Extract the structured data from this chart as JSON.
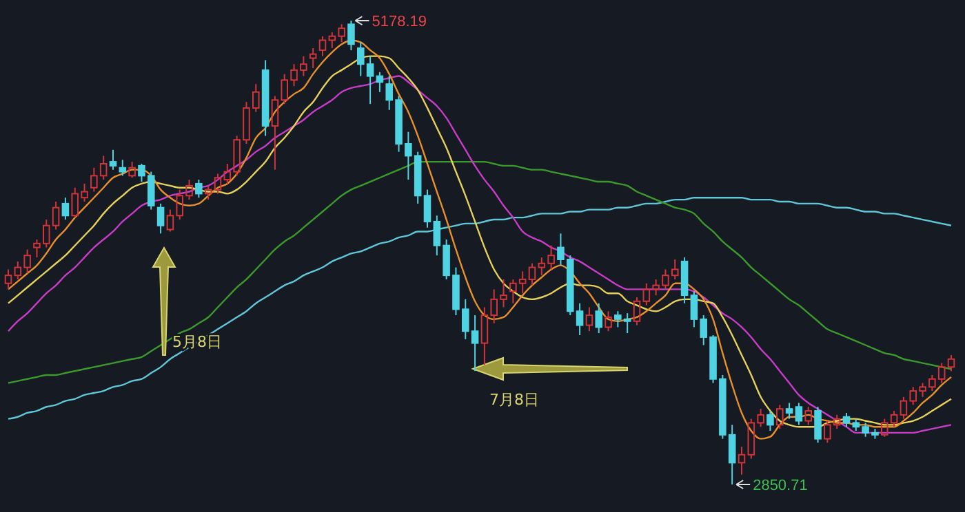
{
  "chart_data": {
    "type": "candlestick",
    "categories": [
      null,
      null,
      null,
      null,
      null,
      null,
      null,
      null,
      null,
      null,
      null,
      null,
      null,
      null,
      null,
      null,
      null,
      null,
      null,
      null,
      null,
      null,
      null,
      null,
      null,
      null,
      null,
      null,
      null,
      null,
      null,
      null,
      null,
      null,
      null,
      null,
      null,
      null,
      null,
      null,
      null,
      null,
      null,
      null,
      null,
      null,
      null,
      null,
      null,
      null,
      null,
      null,
      null,
      null,
      null,
      null,
      null,
      null,
      null,
      null,
      null,
      null,
      null,
      null,
      null,
      null,
      null,
      null,
      null,
      null,
      null,
      null,
      null,
      null,
      null,
      null,
      null,
      null,
      null,
      null,
      null,
      null,
      null,
      null,
      null,
      null,
      null,
      null,
      null,
      null,
      null,
      null,
      null,
      null,
      null,
      null,
      null,
      null,
      null,
      null
    ],
    "ohlc": [
      [
        3860,
        3930,
        3830,
        3900
      ],
      [
        3900,
        3970,
        3880,
        3940
      ],
      [
        3940,
        4030,
        3910,
        4000
      ],
      [
        4040,
        4080,
        3990,
        4060
      ],
      [
        4060,
        4180,
        4040,
        4150
      ],
      [
        4150,
        4270,
        4130,
        4240
      ],
      [
        4260,
        4290,
        4180,
        4200
      ],
      [
        4200,
        4340,
        4190,
        4310
      ],
      [
        4290,
        4360,
        4270,
        4320
      ],
      [
        4340,
        4440,
        4320,
        4400
      ],
      [
        4400,
        4500,
        4380,
        4460
      ],
      [
        4470,
        4530,
        4430,
        4450
      ],
      [
        4440,
        4480,
        4400,
        4420
      ],
      [
        4400,
        4470,
        4390,
        4440
      ],
      [
        4450,
        4460,
        4370,
        4400
      ],
      [
        4400,
        4420,
        4230,
        4250
      ],
      [
        4240,
        4260,
        4110,
        4150
      ],
      [
        4130,
        4230,
        4120,
        4200
      ],
      [
        4200,
        4330,
        4180,
        4300
      ],
      [
        4300,
        4380,
        4280,
        4350
      ],
      [
        4360,
        4380,
        4290,
        4310
      ],
      [
        4310,
        4350,
        4280,
        4330
      ],
      [
        4330,
        4410,
        4310,
        4390
      ],
      [
        4380,
        4460,
        4360,
        4420
      ],
      [
        4420,
        4600,
        4400,
        4580
      ],
      [
        4580,
        4770,
        4560,
        4740
      ],
      [
        4740,
        4860,
        4720,
        4820
      ],
      [
        4930,
        4980,
        4600,
        4650
      ],
      [
        4650,
        4800,
        4430,
        4780
      ],
      [
        4780,
        4910,
        4760,
        4880
      ],
      [
        4880,
        4960,
        4850,
        4930
      ],
      [
        4930,
        5000,
        4900,
        4960
      ],
      [
        4990,
        5040,
        4940,
        5010
      ],
      [
        5030,
        5100,
        5000,
        5080
      ],
      [
        5080,
        5120,
        5040,
        5100
      ],
      [
        5100,
        5160,
        5070,
        5140
      ],
      [
        5160,
        5178.19,
        5030,
        5060
      ],
      [
        5040,
        5070,
        4900,
        4960
      ],
      [
        4960,
        5000,
        4760,
        4900
      ],
      [
        4900,
        4920,
        4820,
        4870
      ],
      [
        4860,
        4900,
        4730,
        4780
      ],
      [
        4780,
        4800,
        4520,
        4560
      ],
      [
        4560,
        4620,
        4380,
        4500
      ],
      [
        4500,
        4520,
        4260,
        4300
      ],
      [
        4300,
        4330,
        4140,
        4170
      ],
      [
        4170,
        4200,
        4000,
        4050
      ],
      [
        4050,
        4080,
        3880,
        3900
      ],
      [
        3900,
        3940,
        3700,
        3730
      ],
      [
        3730,
        3780,
        3580,
        3620
      ],
      [
        3620,
        3700,
        3420,
        3560
      ],
      [
        3560,
        3740,
        3450,
        3700
      ],
      [
        3700,
        3830,
        3660,
        3780
      ],
      [
        3780,
        3880,
        3740,
        3800
      ],
      [
        3820,
        3880,
        3760,
        3860
      ],
      [
        3860,
        3920,
        3810,
        3880
      ],
      [
        3880,
        3960,
        3850,
        3940
      ],
      [
        3940,
        3990,
        3900,
        3960
      ],
      [
        3960,
        4050,
        3930,
        4000
      ],
      [
        4040,
        4110,
        3950,
        3980
      ],
      [
        3980,
        4000,
        3700,
        3720
      ],
      [
        3720,
        3760,
        3600,
        3650
      ],
      [
        3650,
        3740,
        3620,
        3700
      ],
      [
        3720,
        3760,
        3610,
        3640
      ],
      [
        3640,
        3720,
        3620,
        3690
      ],
      [
        3700,
        3720,
        3640,
        3680
      ],
      [
        3680,
        3710,
        3610,
        3670
      ],
      [
        3670,
        3790,
        3650,
        3770
      ],
      [
        3770,
        3860,
        3750,
        3830
      ],
      [
        3830,
        3880,
        3800,
        3850
      ],
      [
        3850,
        3930,
        3830,
        3900
      ],
      [
        3900,
        3980,
        3880,
        3930
      ],
      [
        3970,
        3990,
        3760,
        3800
      ],
      [
        3800,
        3820,
        3640,
        3680
      ],
      [
        3680,
        3700,
        3550,
        3590
      ],
      [
        3590,
        3600,
        3360,
        3380
      ],
      [
        3380,
        3400,
        3080,
        3100
      ],
      [
        3100,
        3150,
        2850.71,
        2960
      ],
      [
        2960,
        3040,
        2900,
        3000
      ],
      [
        3000,
        3180,
        2980,
        3160
      ],
      [
        3160,
        3230,
        3140,
        3200
      ],
      [
        3200,
        3220,
        3120,
        3150
      ],
      [
        3150,
        3250,
        3130,
        3230
      ],
      [
        3230,
        3260,
        3180,
        3210
      ],
      [
        3240,
        3260,
        3150,
        3170
      ],
      [
        3170,
        3240,
        3150,
        3220
      ],
      [
        3220,
        3240,
        3060,
        3080
      ],
      [
        3080,
        3170,
        3060,
        3150
      ],
      [
        3150,
        3200,
        3130,
        3180
      ],
      [
        3190,
        3210,
        3140,
        3160
      ],
      [
        3160,
        3180,
        3120,
        3140
      ],
      [
        3140,
        3160,
        3090,
        3110
      ],
      [
        3110,
        3130,
        3080,
        3100
      ],
      [
        3100,
        3180,
        3090,
        3160
      ],
      [
        3160,
        3220,
        3140,
        3200
      ],
      [
        3200,
        3290,
        3180,
        3270
      ],
      [
        3270,
        3340,
        3250,
        3320
      ],
      [
        3320,
        3360,
        3290,
        3340
      ],
      [
        3340,
        3400,
        3320,
        3380
      ],
      [
        3380,
        3460,
        3360,
        3440
      ],
      [
        3440,
        3500,
        3420,
        3480
      ]
    ],
    "series": [
      {
        "type": "line",
        "color": "#5fc7d8",
        "values": [
          3180,
          3190,
          3210,
          3220,
          3240,
          3250,
          3270,
          3280,
          3300,
          3310,
          3320,
          3340,
          3350,
          3370,
          3380,
          3410,
          3440,
          3480,
          3510,
          3540,
          3570,
          3600,
          3630,
          3660,
          3690,
          3720,
          3760,
          3790,
          3820,
          3850,
          3870,
          3900,
          3920,
          3940,
          3970,
          3990,
          4010,
          4020,
          4040,
          4060,
          4070,
          4090,
          4100,
          4120,
          4120,
          4130,
          4140,
          4150,
          4160,
          4160,
          4170,
          4180,
          4180,
          4190,
          4190,
          4200,
          4210,
          4210,
          4210,
          4220,
          4220,
          4230,
          4230,
          4230,
          4240,
          4240,
          4250,
          4260,
          4260,
          4270,
          4280,
          4280,
          4290,
          4290,
          4290,
          4290,
          4290,
          4290,
          4280,
          4280,
          4280,
          4270,
          4270,
          4260,
          4260,
          4260,
          4250,
          4240,
          4240,
          4230,
          4220,
          4220,
          4210,
          4210,
          4200,
          4190,
          4180,
          4170,
          4160,
          4150
        ]
      },
      {
        "type": "line",
        "color": "#3c9a2c",
        "values": [
          3360,
          3370,
          3380,
          3390,
          3400,
          3400,
          3410,
          3420,
          3430,
          3440,
          3450,
          3460,
          3470,
          3480,
          3490,
          3520,
          3550,
          3580,
          3610,
          3630,
          3660,
          3690,
          3740,
          3790,
          3840,
          3880,
          3930,
          3980,
          4030,
          4070,
          4100,
          4140,
          4180,
          4220,
          4260,
          4300,
          4330,
          4350,
          4370,
          4390,
          4410,
          4430,
          4450,
          4470,
          4470,
          4470,
          4470,
          4470,
          4470,
          4470,
          4470,
          4460,
          4450,
          4450,
          4440,
          4430,
          4430,
          4420,
          4410,
          4400,
          4390,
          4380,
          4370,
          4370,
          4360,
          4350,
          4320,
          4300,
          4280,
          4260,
          4240,
          4230,
          4210,
          4160,
          4120,
          4070,
          4030,
          3990,
          3940,
          3900,
          3860,
          3820,
          3780,
          3750,
          3710,
          3670,
          3630,
          3610,
          3590,
          3570,
          3550,
          3530,
          3510,
          3500,
          3480,
          3470,
          3460,
          3450,
          3440,
          3430
        ]
      },
      {
        "type": "line",
        "color": "#c83cc8",
        "values": [
          3620,
          3670,
          3710,
          3760,
          3810,
          3850,
          3900,
          3940,
          3990,
          4040,
          4080,
          4120,
          4170,
          4210,
          4250,
          4270,
          4280,
          4300,
          4310,
          4320,
          4340,
          4350,
          4380,
          4420,
          4450,
          4480,
          4520,
          4550,
          4590,
          4620,
          4650,
          4680,
          4720,
          4750,
          4780,
          4820,
          4840,
          4850,
          4860,
          4880,
          4890,
          4900,
          4870,
          4830,
          4790,
          4750,
          4690,
          4610,
          4530,
          4450,
          4380,
          4320,
          4250,
          4190,
          4120,
          4090,
          4070,
          4040,
          4020,
          3990,
          3970,
          3940,
          3910,
          3880,
          3850,
          3830,
          3830,
          3830,
          3830,
          3830,
          3830,
          3830,
          3820,
          3790,
          3750,
          3710,
          3680,
          3640,
          3590,
          3530,
          3480,
          3420,
          3360,
          3300,
          3260,
          3230,
          3200,
          3170,
          3140,
          3110,
          3110,
          3110,
          3110,
          3110,
          3110,
          3110,
          3120,
          3130,
          3140,
          3150
        ]
      },
      {
        "type": "line",
        "color": "#e6d25a",
        "values": [
          3760,
          3800,
          3840,
          3880,
          3920,
          3960,
          4000,
          4050,
          4100,
          4150,
          4210,
          4260,
          4300,
          4340,
          4360,
          4370,
          4360,
          4350,
          4340,
          4340,
          4330,
          4320,
          4320,
          4310,
          4330,
          4370,
          4420,
          4470,
          4540,
          4590,
          4650,
          4720,
          4770,
          4840,
          4900,
          4930,
          4960,
          4990,
          5000,
          5000,
          4990,
          4940,
          4890,
          4830,
          4740,
          4640,
          4540,
          4420,
          4300,
          4170,
          4040,
          3930,
          3860,
          3820,
          3790,
          3780,
          3790,
          3810,
          3840,
          3860,
          3850,
          3850,
          3840,
          3810,
          3810,
          3770,
          3750,
          3730,
          3720,
          3740,
          3770,
          3780,
          3780,
          3770,
          3760,
          3690,
          3600,
          3500,
          3400,
          3290,
          3220,
          3170,
          3150,
          3140,
          3140,
          3140,
          3160,
          3170,
          3180,
          3180,
          3170,
          3160,
          3150,
          3150,
          3160,
          3170,
          3190,
          3220,
          3250,
          3280
        ]
      },
      {
        "type": "line",
        "color": "#e8912c",
        "values": [
          3830,
          3870,
          3910,
          3950,
          4010,
          4080,
          4130,
          4190,
          4240,
          4290,
          4340,
          4390,
          4410,
          4430,
          4430,
          4400,
          4330,
          4290,
          4260,
          4250,
          4260,
          4300,
          4340,
          4360,
          4410,
          4490,
          4590,
          4640,
          4720,
          4770,
          4810,
          4840,
          4910,
          4970,
          5020,
          5060,
          5080,
          5070,
          5030,
          4990,
          4910,
          4810,
          4720,
          4600,
          4460,
          4320,
          4180,
          4030,
          3890,
          3770,
          3700,
          3680,
          3690,
          3740,
          3800,
          3850,
          3890,
          3930,
          3950,
          3920,
          3860,
          3810,
          3740,
          3680,
          3670,
          3680,
          3690,
          3720,
          3760,
          3800,
          3860,
          3860,
          3830,
          3780,
          3680,
          3510,
          3350,
          3210,
          3120,
          3080,
          3090,
          3150,
          3190,
          3190,
          3200,
          3180,
          3170,
          3160,
          3160,
          3150,
          3150,
          3140,
          3140,
          3140,
          3170,
          3210,
          3260,
          3300,
          3350,
          3390
        ]
      }
    ],
    "annotations": [
      "5178.19",
      "2850.71",
      "5月8日",
      "7月8日"
    ]
  }
}
